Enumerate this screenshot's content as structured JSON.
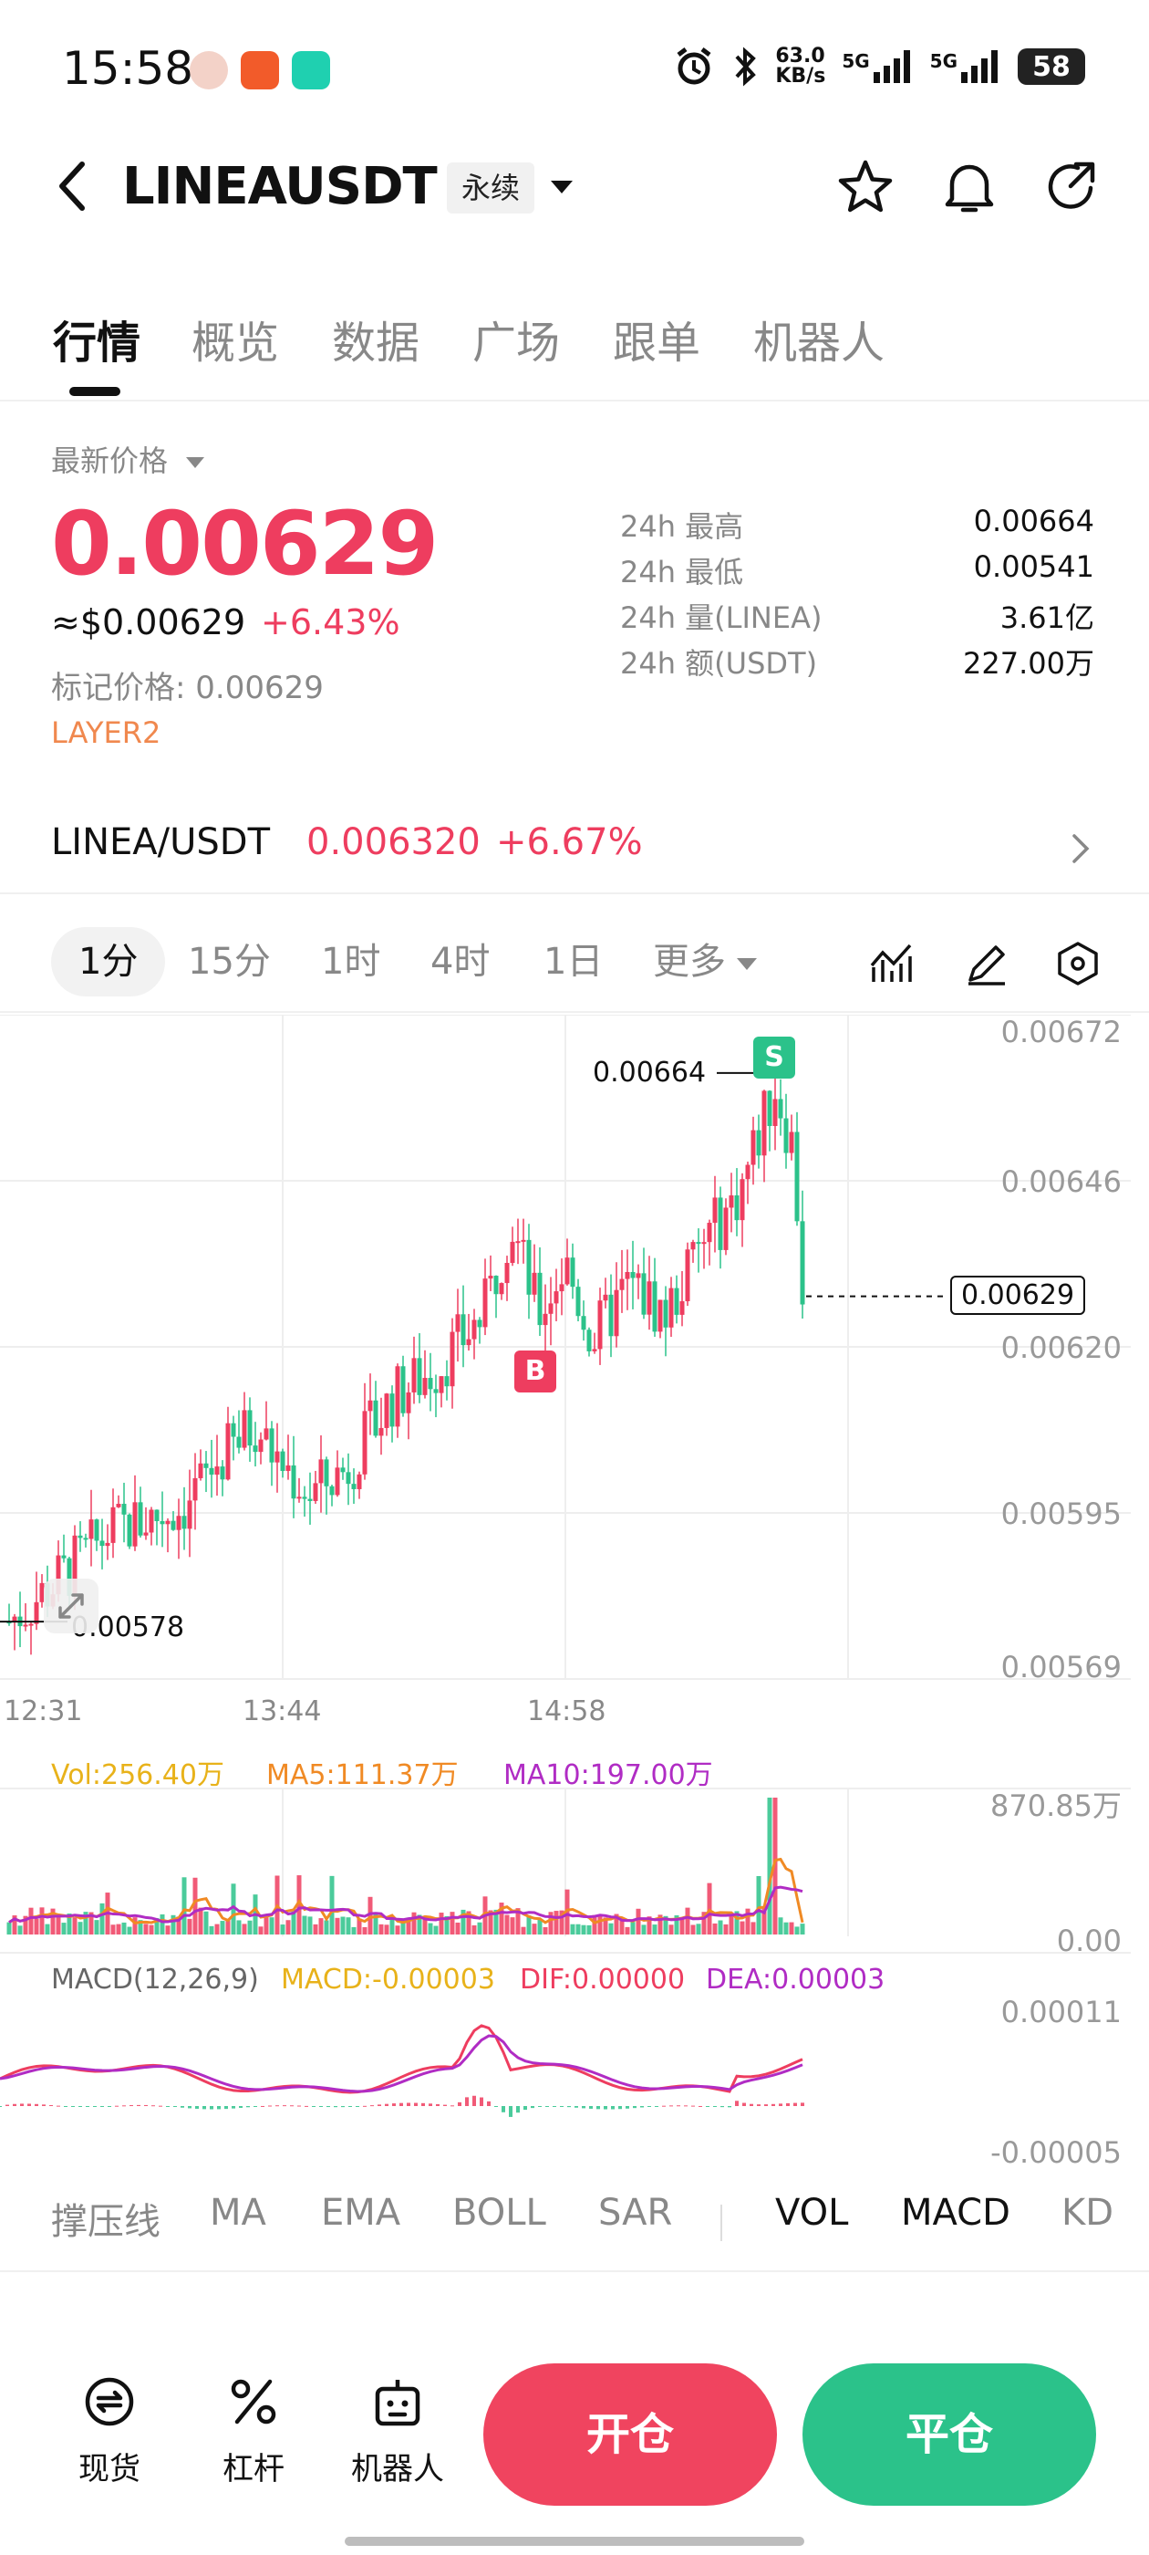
{
  "status_bar": {
    "time": "15:58",
    "net_speed_value": "63.0",
    "net_speed_unit": "KB/s",
    "signal1": "5G",
    "signal2": "5G",
    "battery": "58"
  },
  "header": {
    "symbol": "LINEAUSDT",
    "contract_type": "永续"
  },
  "tabs": [
    "行情",
    "概览",
    "数据",
    "广场",
    "跟单",
    "机器人"
  ],
  "price": {
    "label": "最新价格",
    "last": "0.00629",
    "usd": "≈$0.00629",
    "change": "+6.43%",
    "mark_label": "标记价格: 0.00629",
    "tag": "LAYER2"
  },
  "stats": [
    {
      "label": "24h  最高",
      "value": "0.00664"
    },
    {
      "label": "24h  最低",
      "value": "0.00541"
    },
    {
      "label": "24h  量(LINEA)",
      "value": "3.61亿"
    },
    {
      "label": "24h  额(USDT)",
      "value": "227.00万"
    }
  ],
  "spot": {
    "pair": "LINEA/USDT",
    "price": "0.006320",
    "change": "+6.67%"
  },
  "intervals": [
    "1分",
    "15分",
    "1时",
    "4时",
    "1日"
  ],
  "more_label": "更多",
  "chart_data": {
    "type": "candlestick",
    "price_axis": [
      "0.00672",
      "0.00646",
      "0.00620",
      "0.00595",
      "0.00569"
    ],
    "ylim": [
      0.00569,
      0.00672
    ],
    "time_axis": [
      "12:31",
      "13:44",
      "14:58"
    ],
    "high_marker": "0.00664",
    "low_marker": "0.00578",
    "current_price_label": "0.00629",
    "buy_marker": "B",
    "sell_marker": "S",
    "volume": {
      "vol_label": "Vol:256.40万",
      "ma5_label": "MA5:111.37万",
      "ma10_label": "MA10:197.00万",
      "axis_max": "870.85万",
      "axis_min": "0.00"
    },
    "macd": {
      "title": "MACD(12,26,9)",
      "macd_label": "MACD:-0.00003",
      "dif_label": "DIF:0.00000",
      "dea_label": "DEA:0.00003",
      "axis_max": "0.00011",
      "axis_min": "-0.00005"
    }
  },
  "indicators": [
    "撑压线",
    "MA",
    "EMA",
    "BOLL",
    "SAR",
    "VOL",
    "MACD",
    "KD"
  ],
  "bottom": {
    "spot_label": "现货",
    "leverage_label": "杠杆",
    "bot_label": "机器人",
    "open_label": "开仓",
    "close_label": "平仓"
  },
  "colors": {
    "up": "#ee3d5f",
    "down": "#2bc28a",
    "tag": "#f0884e",
    "vol_yellow": "#e8b21a",
    "ma5_orange": "#f08a24",
    "ma10_purple": "#b02cc4"
  }
}
